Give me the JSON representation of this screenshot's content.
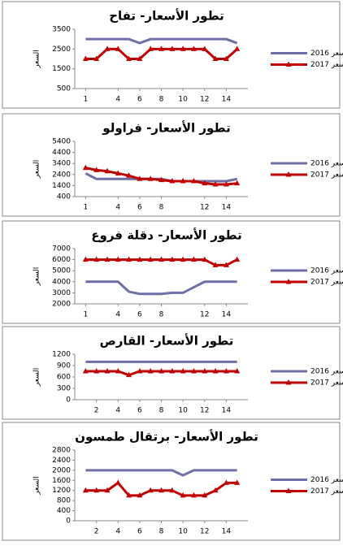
{
  "chart_data": [
    {
      "type": "line",
      "title": "تطور الأسعار- تفاح",
      "y_label": "السعر",
      "x": [
        1,
        2,
        3,
        4,
        5,
        6,
        7,
        8,
        9,
        10,
        11,
        12,
        13,
        14,
        15
      ],
      "xlim": [
        0,
        16
      ],
      "xticks": [
        1,
        4,
        6,
        8,
        10,
        12,
        14
      ],
      "ylim": [
        500,
        3500
      ],
      "yticks": [
        500,
        1500,
        2500,
        3500
      ],
      "series": [
        {
          "name": "السعر 2016",
          "color": "#6f6fa8",
          "values": [
            3000,
            3000,
            3000,
            3000,
            3000,
            2800,
            3000,
            3000,
            3000,
            3000,
            3000,
            3000,
            3000,
            3000,
            2800
          ]
        },
        {
          "name": "السعر 2017",
          "color": "#c00000",
          "values": [
            2000,
            2000,
            2500,
            2500,
            2000,
            2000,
            2500,
            2500,
            2500,
            2500,
            2500,
            2500,
            2000,
            2000,
            2500
          ]
        }
      ]
    },
    {
      "type": "line",
      "title": "تطور الأسعار- فراولو",
      "y_label": "السعر",
      "x": [
        1,
        2,
        3,
        4,
        5,
        6,
        7,
        8,
        9,
        10,
        11,
        12,
        13,
        14,
        15
      ],
      "xlim": [
        0,
        16
      ],
      "xticks": [
        1,
        4,
        6,
        8,
        12,
        14
      ],
      "ylim": [
        400,
        5400
      ],
      "yticks": [
        400,
        1400,
        2400,
        3400,
        4400,
        5400
      ],
      "series": [
        {
          "name": "السعر 2016",
          "color": "#6f6fa8",
          "values": [
            2500,
            2000,
            2000,
            2000,
            2000,
            2000,
            2000,
            2000,
            1800,
            1800,
            1800,
            1800,
            1800,
            1800,
            2000
          ]
        },
        {
          "name": "السعر 2017",
          "color": "#c00000",
          "values": [
            3000,
            2800,
            2700,
            2500,
            2300,
            2000,
            2000,
            1900,
            1800,
            1800,
            1800,
            1600,
            1500,
            1500,
            1600
          ]
        }
      ]
    },
    {
      "type": "line",
      "title": "تطور الأسعار- دقلة فروع",
      "y_label": "السعر",
      "x": [
        1,
        2,
        3,
        4,
        5,
        6,
        7,
        8,
        9,
        10,
        11,
        12,
        13,
        14,
        15
      ],
      "xlim": [
        0,
        16
      ],
      "xticks": [
        1,
        4,
        6,
        8,
        12,
        14
      ],
      "ylim": [
        2000,
        7000
      ],
      "yticks": [
        2000,
        3000,
        4000,
        5000,
        6000,
        7000
      ],
      "series": [
        {
          "name": "السعر 2016",
          "color": "#6f6fa8",
          "values": [
            4000,
            4000,
            4000,
            4000,
            3100,
            2900,
            2900,
            2900,
            3000,
            3000,
            3500,
            4000,
            4000,
            4000,
            4000
          ]
        },
        {
          "name": "السعر 2017",
          "color": "#c00000",
          "values": [
            6000,
            6000,
            6000,
            6000,
            6000,
            6000,
            6000,
            6000,
            6000,
            6000,
            6000,
            6000,
            5500,
            5500,
            6000
          ]
        }
      ]
    },
    {
      "type": "line",
      "title": "تطور الأسعار- القارص",
      "y_label": "السعر",
      "x": [
        1,
        2,
        3,
        4,
        5,
        6,
        7,
        8,
        9,
        10,
        11,
        12,
        13,
        14,
        15
      ],
      "xlim": [
        0,
        16
      ],
      "xticks": [
        2,
        4,
        6,
        8,
        10,
        12,
        14
      ],
      "ylim": [
        0,
        1200
      ],
      "yticks": [
        0,
        300,
        600,
        900,
        1200
      ],
      "series": [
        {
          "name": "السعر 2016",
          "color": "#6f6fa8",
          "values": [
            1000,
            1000,
            1000,
            1000,
            1000,
            1000,
            1000,
            1000,
            1000,
            1000,
            1000,
            1000,
            1000,
            1000,
            1000
          ]
        },
        {
          "name": "السعر 2017",
          "color": "#c00000",
          "values": [
            750,
            750,
            750,
            750,
            650,
            750,
            750,
            750,
            750,
            750,
            750,
            750,
            750,
            750,
            750
          ]
        }
      ]
    },
    {
      "type": "line",
      "title": "تطور الأسعار- برتقال طمسون",
      "y_label": "السعر",
      "x": [
        1,
        2,
        3,
        4,
        5,
        6,
        7,
        8,
        9,
        10,
        11,
        12,
        13,
        14,
        15
      ],
      "xlim": [
        0,
        16
      ],
      "xticks": [
        2,
        4,
        6,
        8,
        10,
        12,
        14
      ],
      "ylim": [
        0,
        2800
      ],
      "yticks": [
        0,
        400,
        800,
        1200,
        1600,
        2000,
        2400,
        2800
      ],
      "series": [
        {
          "name": "السعر 2016",
          "color": "#6f6fa8",
          "values": [
            2000,
            2000,
            2000,
            2000,
            2000,
            2000,
            2000,
            2000,
            2000,
            1800,
            2000,
            2000,
            2000,
            2000,
            2000
          ]
        },
        {
          "name": "السعر 2017",
          "color": "#c00000",
          "values": [
            1200,
            1200,
            1200,
            1500,
            1000,
            1000,
            1200,
            1200,
            1200,
            1000,
            1000,
            1000,
            1200,
            1500,
            1500
          ]
        }
      ]
    }
  ]
}
